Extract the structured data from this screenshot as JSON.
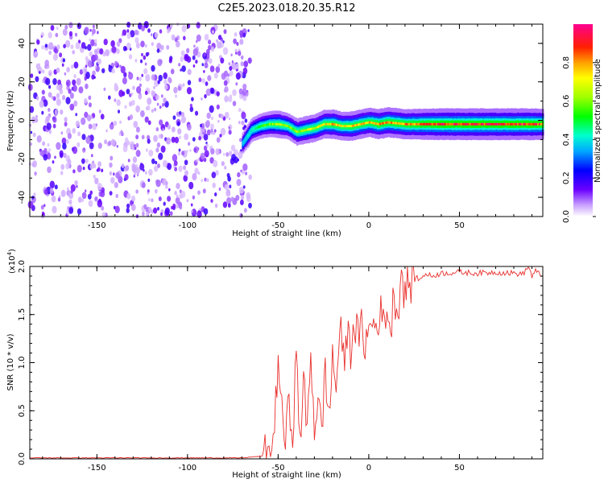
{
  "title": "C2E5.2023.018.20.35.R12",
  "chart_data": [
    {
      "type": "heatmap",
      "xlabel": "Height of straight line (km)",
      "ylabel": "Frequency (Hz)",
      "xlim": [
        -187,
        96
      ],
      "ylim": [
        -50,
        50
      ],
      "xticks": [
        -150,
        -100,
        -50,
        0,
        50
      ],
      "yticks": [
        -40,
        -20,
        0,
        20,
        40
      ],
      "colorbar": {
        "label": "Normalized spectral amplitude",
        "range": [
          0,
          1
        ],
        "ticks": [
          "0.0",
          "0.2",
          "0.4",
          "0.6",
          "0.8"
        ],
        "tick_values": [
          0.0,
          0.2,
          0.4,
          0.6,
          0.8
        ]
      },
      "noise_region": {
        "x_range": [
          -187,
          -68
        ],
        "description_level": "low amplitude scattered noise"
      },
      "signal_ridge": {
        "x": [
          -70,
          -65,
          -60,
          -55,
          -50,
          -45,
          -40,
          -35,
          -30,
          -25,
          -20,
          -15,
          -10,
          -5,
          0,
          5,
          10,
          20,
          30,
          40,
          50,
          60,
          70,
          80,
          90,
          96
        ],
        "freq": [
          -12,
          -5,
          -3,
          -2,
          -2,
          -3,
          -6,
          -5,
          -4,
          -2,
          -2,
          -3,
          -3,
          -2,
          -1,
          -2,
          -1,
          -2,
          -2,
          -2,
          -2,
          -2,
          -2,
          -2,
          -2,
          -2
        ],
        "amplitude": [
          0.3,
          0.45,
          0.55,
          0.6,
          0.7,
          0.6,
          0.65,
          0.7,
          0.7,
          0.75,
          0.8,
          0.75,
          0.8,
          0.8,
          0.8,
          0.85,
          0.85,
          0.85,
          0.9,
          0.95,
          0.95,
          0.95,
          0.95,
          0.95,
          0.95,
          0.9
        ]
      }
    },
    {
      "type": "line",
      "xlabel": "Height of straight line (km)",
      "ylabel": "SNR (10 * v/v)",
      "y_multiplier_label": "(x10",
      "y_multiplier_exp": "4",
      "y_multiplier_close": ")",
      "xlim": [
        -187,
        96
      ],
      "ylim": [
        0,
        2.0
      ],
      "xticks": [
        -150,
        -100,
        -50,
        0,
        50
      ],
      "yticks": [
        "0.0",
        "0.5",
        "1.0",
        "1.5",
        "2.0"
      ],
      "ytick_values": [
        0.0,
        0.5,
        1.0,
        1.5,
        2.0
      ],
      "series": [
        {
          "color": "#e8302c",
          "x": [
            -187,
            -120,
            -70,
            -58,
            -55,
            -52,
            -50,
            -48,
            -46,
            -44,
            -42,
            -40,
            -38,
            -36,
            -34,
            -32,
            -30,
            -28,
            -26,
            -24,
            -22,
            -20,
            -18,
            -16,
            -14,
            -12,
            -10,
            -8,
            -6,
            -4,
            -2,
            0,
            2,
            4,
            6,
            8,
            10,
            12,
            14,
            16,
            18,
            20,
            22,
            24,
            26,
            28,
            30,
            35,
            40,
            50,
            60,
            70,
            80,
            85,
            88,
            90,
            92,
            94,
            96
          ],
          "y": [
            0.01,
            0.01,
            0.01,
            0.03,
            0.06,
            0.3,
            1.1,
            0.45,
            0.2,
            0.55,
            0.3,
            1.05,
            0.2,
            0.8,
            0.25,
            1.15,
            0.3,
            0.7,
            0.2,
            1.0,
            0.35,
            1.1,
            0.7,
            1.4,
            1.0,
            1.3,
            1.15,
            1.45,
            1.25,
            1.35,
            1.2,
            1.3,
            1.45,
            1.35,
            1.55,
            1.4,
            1.6,
            1.3,
            1.75,
            1.5,
            1.95,
            1.7,
            1.85,
            1.8,
            1.9,
            1.85,
            1.92,
            1.9,
            1.93,
            1.94,
            1.93,
            1.94,
            1.93,
            1.92,
            2.0,
            1.9,
            1.95,
            1.92,
            1.9
          ]
        }
      ]
    }
  ]
}
